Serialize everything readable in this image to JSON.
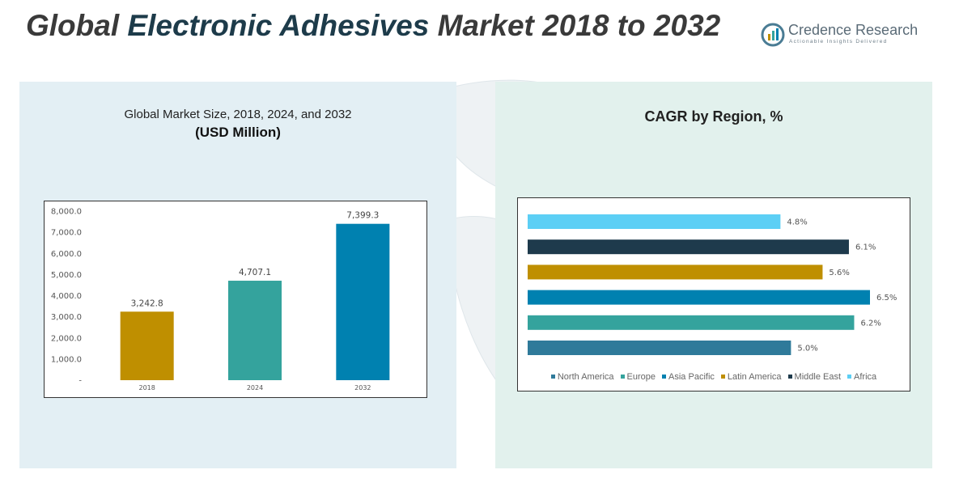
{
  "header": {
    "title_prefix": "Global",
    "title_highlight": "Electronic Adhesives",
    "title_suffix": "Market 2018 to 2032"
  },
  "logo": {
    "name": "Credence Research",
    "tagline": "Actionable Insights Delivered"
  },
  "colors": {
    "brand": "#1d3b4a",
    "panel_left": "#e3eff4",
    "panel_right": "#e2f1ed"
  },
  "chart_data": [
    {
      "type": "bar",
      "title": "Global Market Size, 2018, 2024, and 2032",
      "subtitle": "(USD Million)",
      "categories": [
        "2018",
        "2024",
        "2032"
      ],
      "values": [
        3242.8,
        4707.1,
        7399.3
      ],
      "value_labels": [
        "3,242.8",
        "4,707.1",
        "7,399.3"
      ],
      "colors": [
        "#bf8f00",
        "#34a39d",
        "#0081b0"
      ],
      "ylim": [
        0,
        8000
      ],
      "yticks": [
        0,
        1000,
        2000,
        3000,
        4000,
        5000,
        6000,
        7000,
        8000
      ],
      "ytick_labels": [
        "-",
        "1,000.0",
        "2,000.0",
        "3,000.0",
        "4,000.0",
        "5,000.0",
        "6,000.0",
        "7,000.0",
        "8,000.0"
      ],
      "grid": false
    },
    {
      "type": "bar",
      "orientation": "horizontal",
      "title": "CAGR by Region, %",
      "categories": [
        "North America",
        "Europe",
        "Asia Pacific",
        "Latin America",
        "Middle East",
        "Africa"
      ],
      "values": [
        5.0,
        6.2,
        6.5,
        5.6,
        6.1,
        4.8
      ],
      "value_labels": [
        "5.0%",
        "6.2%",
        "6.5%",
        "5.6%",
        "6.1%",
        "4.8%"
      ],
      "colors": [
        "#2f7a9a",
        "#34a39d",
        "#0081b0",
        "#bf8f00",
        "#1e3a4c",
        "#5ccff5"
      ],
      "xlim": [
        0,
        6.5
      ],
      "legend": "bottom",
      "grid": false
    }
  ]
}
